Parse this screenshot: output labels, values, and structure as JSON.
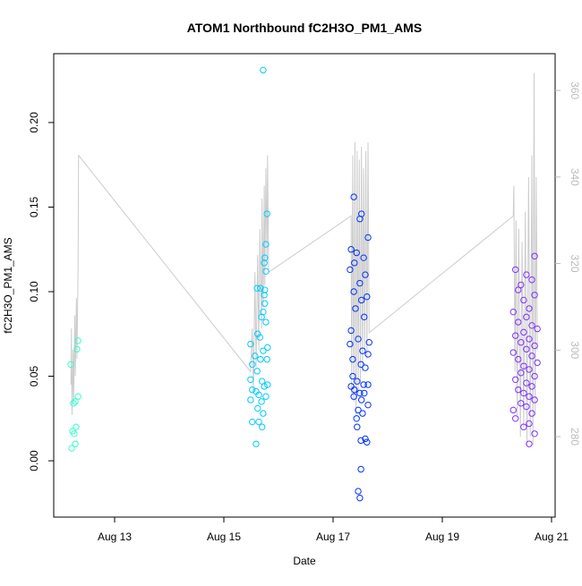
{
  "chart_data": {
    "type": "scatter",
    "title": "ATOM1 Northbound fC2H3O_PM1_AMS",
    "x_label": "Date",
    "y_label": "fC2H3O_PM1_AMS",
    "xlim": [
      11.885,
      21.066
    ],
    "ylim": [
      -0.0333,
      0.2407
    ],
    "y2lim": [
      261.4,
      368.5
    ],
    "xticks": [
      {
        "value": 13,
        "label": "Aug 13"
      },
      {
        "value": 15,
        "label": "Aug 15"
      },
      {
        "value": 17,
        "label": "Aug 17"
      },
      {
        "value": 19,
        "label": "Aug 19"
      },
      {
        "value": 21,
        "label": "Aug 21"
      }
    ],
    "yticks": [
      {
        "value": 0,
        "label": "0.00"
      },
      {
        "value": 0.05,
        "label": "0.05"
      },
      {
        "value": 0.1,
        "label": "0.10"
      },
      {
        "value": 0.15,
        "label": "0.15"
      },
      {
        "value": 0.2,
        "label": "0.20"
      }
    ],
    "y2ticks": [
      280,
      300,
      320,
      340,
      360
    ],
    "series": [
      {
        "color": "#33ffcc",
        "x": [
          12.197,
          12.213,
          12.23,
          12.26,
          12.246,
          12.28,
          12.295,
          12.28,
          12.31,
          12.33,
          12.33
        ],
        "values": [
          0.057,
          0.0074,
          0.0175,
          0.016,
          0.034,
          0.035,
          0.02,
          0.01,
          0.066,
          0.071,
          0.038
        ]
      },
      {
        "color": "#00ccff",
        "x": [
          15.72,
          15.79,
          15.77,
          15.75,
          15.74,
          15.77,
          15.61,
          15.67,
          15.75,
          15.74,
          15.75,
          15.72,
          15.69,
          15.77,
          15.62,
          15.66,
          15.49,
          15.72,
          15.57,
          15.67,
          15.79,
          15.52,
          15.61,
          15.49,
          15.7,
          15.74,
          15.52,
          15.59,
          15.64,
          15.77,
          15.49,
          15.69,
          15.62,
          15.72,
          15.52,
          15.64,
          15.7,
          15.59,
          15.8,
          15.8
        ],
        "values": [
          0.231,
          0.146,
          0.128,
          0.12,
          0.117,
          0.112,
          0.102,
          0.102,
          0.101,
          0.098,
          0.093,
          0.088,
          0.085,
          0.082,
          0.075,
          0.073,
          0.069,
          0.065,
          0.062,
          0.06,
          0.06,
          0.057,
          0.053,
          0.048,
          0.047,
          0.044,
          0.042,
          0.041,
          0.039,
          0.038,
          0.036,
          0.035,
          0.031,
          0.028,
          0.023,
          0.023,
          0.02,
          0.01,
          0.067,
          0.045
        ]
      },
      {
        "color": "#0033ff",
        "x": [
          17.38,
          17.52,
          17.49,
          17.64,
          17.33,
          17.43,
          17.56,
          17.39,
          17.31,
          17.59,
          17.49,
          17.38,
          17.62,
          17.52,
          17.41,
          17.57,
          17.33,
          17.46,
          17.31,
          17.54,
          17.64,
          17.36,
          17.51,
          17.59,
          17.36,
          17.44,
          17.56,
          17.33,
          17.39,
          17.49,
          17.57,
          17.38,
          17.52,
          17.64,
          17.46,
          17.54,
          17.43,
          17.44,
          17.59,
          17.51,
          17.62,
          17.51,
          17.46,
          17.49,
          17.64,
          17.66
        ],
        "values": [
          0.156,
          0.146,
          0.143,
          0.132,
          0.125,
          0.123,
          0.12,
          0.117,
          0.113,
          0.11,
          0.105,
          0.1,
          0.097,
          0.095,
          0.09,
          0.085,
          0.077,
          0.072,
          0.069,
          0.065,
          0.063,
          0.06,
          0.057,
          0.055,
          0.05,
          0.047,
          0.045,
          0.044,
          0.042,
          0.04,
          0.04,
          0.038,
          0.036,
          0.033,
          0.03,
          0.028,
          0.025,
          0.02,
          0.013,
          0.012,
          0.011,
          -0.005,
          -0.018,
          -0.022,
          0.045,
          0.07
        ]
      },
      {
        "color": "#7f33ff",
        "x": [
          20.34,
          20.54,
          20.64,
          20.44,
          20.39,
          20.69,
          20.49,
          20.59,
          20.3,
          20.54,
          20.39,
          20.64,
          20.74,
          20.49,
          20.34,
          20.59,
          20.44,
          20.69,
          20.54,
          20.3,
          20.64,
          20.39,
          20.74,
          20.49,
          20.59,
          20.44,
          20.69,
          20.34,
          20.54,
          20.64,
          20.39,
          20.49,
          20.59,
          20.69,
          20.44,
          20.54,
          20.3,
          20.64,
          20.34,
          20.59,
          20.49,
          20.69,
          20.59,
          20.69
        ],
        "values": [
          0.113,
          0.11,
          0.107,
          0.104,
          0.101,
          0.098,
          0.095,
          0.09,
          0.088,
          0.085,
          0.082,
          0.08,
          0.078,
          0.076,
          0.074,
          0.072,
          0.07,
          0.068,
          0.066,
          0.064,
          0.062,
          0.06,
          0.058,
          0.056,
          0.054,
          0.052,
          0.05,
          0.048,
          0.046,
          0.044,
          0.042,
          0.04,
          0.038,
          0.036,
          0.034,
          0.032,
          0.03,
          0.028,
          0.025,
          0.022,
          0.02,
          0.016,
          0.01,
          0.121
        ]
      },
      {
        "type": "line",
        "axis": "y2",
        "color": "#cccccc",
        "x": [
          12.2,
          12.21,
          12.22,
          12.24,
          12.25,
          12.27,
          12.28,
          12.3,
          12.31,
          12.33,
          12.34,
          15.49,
          15.52,
          15.54,
          15.57,
          15.59,
          15.62,
          15.64,
          15.66,
          15.69,
          15.7,
          15.72,
          15.74,
          15.75,
          15.77,
          15.79,
          15.8,
          15.82,
          17.33,
          17.34,
          17.36,
          17.38,
          17.4,
          17.42,
          17.44,
          17.46,
          17.48,
          17.5,
          17.52,
          17.54,
          17.56,
          17.58,
          17.6,
          17.62,
          17.64,
          17.66,
          20.3,
          20.31,
          20.33,
          20.35,
          20.37,
          20.4,
          20.43,
          20.46,
          20.49,
          20.52,
          20.55,
          20.58,
          20.61,
          20.64,
          20.66,
          20.68,
          20.7,
          20.72,
          20.74
        ],
        "values": [
          292,
          305,
          285,
          300,
          288,
          308,
          294,
          312,
          298,
          318,
          345,
          295,
          305,
          290,
          318,
          296,
          322,
          300,
          328,
          305,
          335,
          310,
          338,
          315,
          342,
          320,
          345,
          318,
          331,
          290,
          345,
          288,
          348,
          285,
          346,
          290,
          344,
          292,
          347,
          295,
          342,
          300,
          346,
          298,
          348,
          304,
          331,
          338,
          295,
          330,
          285,
          328,
          280,
          325,
          282,
          332,
          278,
          340,
          280,
          345,
          278,
          364,
          285,
          340,
          300
        ]
      }
    ]
  }
}
